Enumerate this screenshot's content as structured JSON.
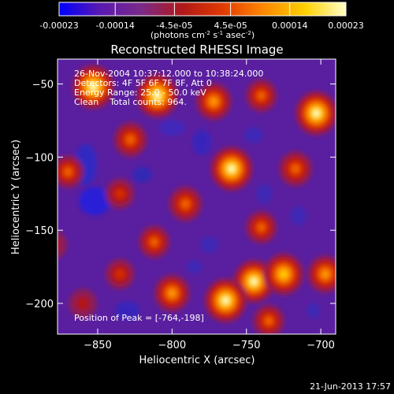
{
  "colorbar": {
    "ticks": [
      {
        "value": -0.00023,
        "label": "-0.00023"
      },
      {
        "value": -0.00014,
        "label": "-0.00014"
      },
      {
        "value": -4.5e-05,
        "label": "-4.5e-05"
      },
      {
        "value": 4.5e-05,
        "label": "4.5e-05"
      },
      {
        "value": 0.00014,
        "label": "0.00014"
      },
      {
        "value": 0.00023,
        "label": "0.00023"
      }
    ],
    "range": [
      -0.00023,
      0.00023
    ],
    "unit_parts": [
      "(photons cm",
      "-2",
      " s",
      "-1",
      " asec",
      "-2",
      ")"
    ],
    "gradient": [
      "#0000ff",
      "#5a19b0",
      "#7a2a8a",
      "#b01818",
      "#e23a00",
      "#ff8800",
      "#ffd000",
      "#ffffc8"
    ]
  },
  "chart_data": {
    "type": "heatmap",
    "title": "Reconstructed RHESSI Image",
    "xlabel": "Heliocentric X (arcsec)",
    "ylabel": "Heliocentric Y (arcsec)",
    "xlim": [
      -877,
      -690
    ],
    "ylim": [
      -221,
      -33
    ],
    "xticks": [
      {
        "value": -850,
        "label": "−850"
      },
      {
        "value": -800,
        "label": "−800"
      },
      {
        "value": -750,
        "label": "−750"
      },
      {
        "value": -700,
        "label": "−700"
      }
    ],
    "yticks": [
      {
        "value": -50,
        "label": "−50"
      },
      {
        "value": -100,
        "label": "−100"
      },
      {
        "value": -150,
        "label": "−150"
      },
      {
        "value": -200,
        "label": "−200"
      }
    ],
    "annotations": [
      "26-Nov-2004 10:37:12.000 to 10:38:24.000",
      "Detectors: 4F 5F 6F 7F 8F, Att 0",
      "Energy Range: 25.0 - 50.0 keV",
      "Clean    Total counts: 964."
    ],
    "peak_label": "Position of Peak = [-764,-198]",
    "peak": {
      "x": -764,
      "y": -198
    },
    "blobs": [
      {
        "x": -853,
        "y": -52,
        "w": 1.0
      },
      {
        "x": -810,
        "y": -58,
        "w": 1.0
      },
      {
        "x": -772,
        "y": -62,
        "w": 0.7
      },
      {
        "x": -703,
        "y": -70,
        "w": 1.0
      },
      {
        "x": -740,
        "y": -58,
        "w": 0.5
      },
      {
        "x": -828,
        "y": -88,
        "w": 0.6
      },
      {
        "x": -760,
        "y": -108,
        "w": 1.0
      },
      {
        "x": -717,
        "y": -108,
        "w": 0.6
      },
      {
        "x": -835,
        "y": -125,
        "w": 0.4
      },
      {
        "x": -791,
        "y": -132,
        "w": 0.6
      },
      {
        "x": -740,
        "y": -148,
        "w": 0.5
      },
      {
        "x": -812,
        "y": -158,
        "w": 0.5
      },
      {
        "x": -870,
        "y": -110,
        "w": 0.5
      },
      {
        "x": -745,
        "y": -185,
        "w": 0.95
      },
      {
        "x": -725,
        "y": -180,
        "w": 0.9
      },
      {
        "x": -697,
        "y": -180,
        "w": 0.7
      },
      {
        "x": -800,
        "y": -193,
        "w": 0.7
      },
      {
        "x": -764,
        "y": -198,
        "w": 1.0
      },
      {
        "x": -835,
        "y": -180,
        "w": 0.4
      },
      {
        "x": -860,
        "y": -200,
        "w": 0.35
      },
      {
        "x": -735,
        "y": -212,
        "w": 0.5
      },
      {
        "x": -880,
        "y": -160,
        "w": 0.35
      }
    ]
  },
  "footer": {
    "date": "21-Jun-2013 17:57"
  }
}
